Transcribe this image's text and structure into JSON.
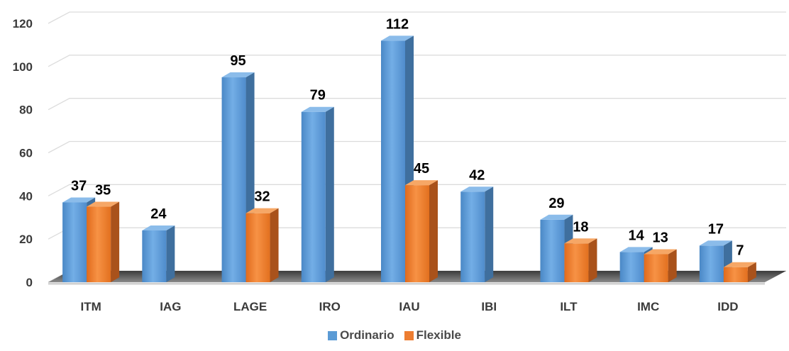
{
  "chart_data": {
    "type": "bar",
    "categories": [
      "ITM",
      "IAG",
      "LAGE",
      "IRO",
      "IAU",
      "IBI",
      "ILT",
      "IMC",
      "IDD"
    ],
    "series": [
      {
        "name": "Ordinario",
        "values": [
          37,
          24,
          95,
          79,
          112,
          42,
          29,
          14,
          17
        ],
        "color": "#5b9bd5"
      },
      {
        "name": "Flexible",
        "values": [
          35,
          null,
          32,
          null,
          45,
          null,
          18,
          13,
          7
        ],
        "color": "#ed7d31"
      }
    ],
    "ylim": [
      0,
      120
    ],
    "yticks": [
      "0",
      "20",
      "40",
      "60",
      "80",
      "100",
      "120"
    ],
    "grid": true,
    "legend_position": "bottom",
    "style": "3d-column"
  }
}
